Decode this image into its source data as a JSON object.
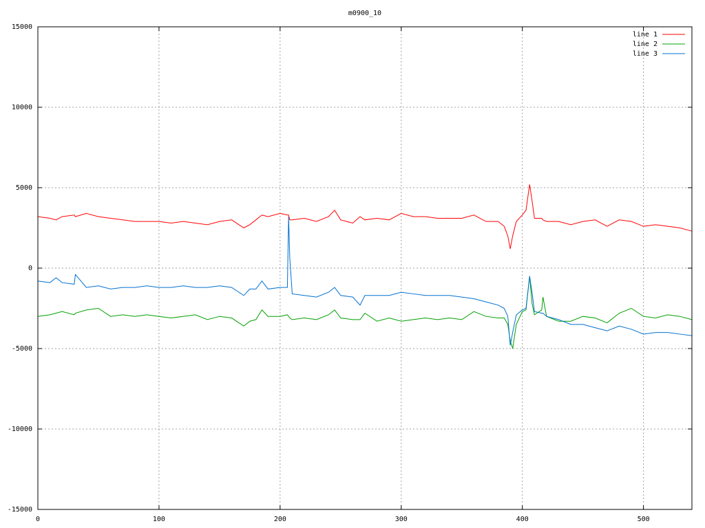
{
  "chart_data": {
    "type": "line",
    "title": "m0900_10",
    "x": [
      0,
      10,
      15,
      20,
      30,
      31,
      40,
      50,
      60,
      70,
      80,
      90,
      100,
      110,
      120,
      130,
      140,
      150,
      160,
      170,
      175,
      180,
      185,
      190,
      200,
      206,
      207,
      208,
      210,
      220,
      230,
      240,
      245,
      250,
      260,
      266,
      270,
      280,
      290,
      300,
      310,
      320,
      330,
      340,
      350,
      360,
      370,
      380,
      385,
      388,
      390,
      392,
      395,
      400,
      403,
      406,
      408,
      410,
      416,
      417,
      420,
      430,
      440,
      450,
      460,
      470,
      480,
      490,
      500,
      510,
      520,
      530,
      540
    ],
    "series": [
      {
        "name": "line 1",
        "color": "#ff0000",
        "values": [
          3200,
          3100,
          3000,
          3200,
          3300,
          3200,
          3400,
          3200,
          3100,
          3000,
          2900,
          2900,
          2900,
          2800,
          2900,
          2800,
          2700,
          2900,
          3000,
          2500,
          2700,
          3000,
          3300,
          3200,
          3400,
          3300,
          3300,
          3000,
          3000,
          3100,
          2900,
          3200,
          3600,
          3000,
          2800,
          3200,
          3000,
          3100,
          3000,
          3400,
          3200,
          3200,
          3100,
          3100,
          3100,
          3300,
          2900,
          2900,
          2600,
          2000,
          1200,
          2000,
          2900,
          3300,
          3600,
          5200,
          4200,
          3100,
          3100,
          3000,
          2900,
          2900,
          2700,
          2900,
          3000,
          2600,
          3000,
          2900,
          2600,
          2700,
          2600,
          2500,
          2300
        ]
      },
      {
        "name": "line 2",
        "color": "#00a000",
        "values": [
          -3000,
          -2900,
          -2800,
          -2700,
          -2900,
          -2800,
          -2600,
          -2500,
          -3000,
          -2900,
          -3000,
          -2900,
          -3000,
          -3100,
          -3000,
          -2900,
          -3200,
          -3000,
          -3100,
          -3600,
          -3300,
          -3200,
          -2600,
          -3000,
          -3000,
          -2900,
          -3000,
          -3100,
          -3200,
          -3100,
          -3200,
          -2900,
          -2600,
          -3100,
          -3200,
          -3200,
          -2800,
          -3300,
          -3100,
          -3300,
          -3200,
          -3100,
          -3200,
          -3100,
          -3200,
          -2700,
          -3000,
          -3100,
          -3100,
          -3500,
          -4500,
          -5000,
          -3500,
          -2700,
          -2600,
          -500,
          -2200,
          -2900,
          -2600,
          -1800,
          -3000,
          -3300,
          -3300,
          -3000,
          -3100,
          -3400,
          -2800,
          -2500,
          -3000,
          -3100,
          -2900,
          -3000,
          -3200
        ]
      },
      {
        "name": "line 3",
        "color": "#0070d0",
        "values": [
          -800,
          -900,
          -600,
          -900,
          -1000,
          -400,
          -1200,
          -1100,
          -1300,
          -1200,
          -1200,
          -1100,
          -1200,
          -1200,
          -1100,
          -1200,
          -1200,
          -1100,
          -1200,
          -1700,
          -1300,
          -1300,
          -800,
          -1300,
          -1200,
          -1200,
          3200,
          600,
          -1600,
          -1700,
          -1800,
          -1500,
          -1200,
          -1700,
          -1800,
          -2300,
          -1700,
          -1700,
          -1700,
          -1500,
          -1600,
          -1700,
          -1700,
          -1700,
          -1800,
          -1900,
          -2100,
          -2300,
          -2500,
          -3000,
          -4800,
          -4000,
          -2900,
          -2600,
          -2500,
          -500,
          -1500,
          -2700,
          -2800,
          -2800,
          -3000,
          -3200,
          -3500,
          -3500,
          -3700,
          -3900,
          -3600,
          -3800,
          -4100,
          -4000,
          -4000,
          -4100,
          -4200
        ]
      }
    ],
    "xlim": [
      0,
      540
    ],
    "xticks": [
      0,
      100,
      200,
      300,
      400,
      500
    ],
    "ylim": [
      -15000,
      15000
    ],
    "yticks": [
      -15000,
      -10000,
      -5000,
      0,
      5000,
      10000,
      15000
    ],
    "grid": true,
    "legend": "top-right"
  }
}
